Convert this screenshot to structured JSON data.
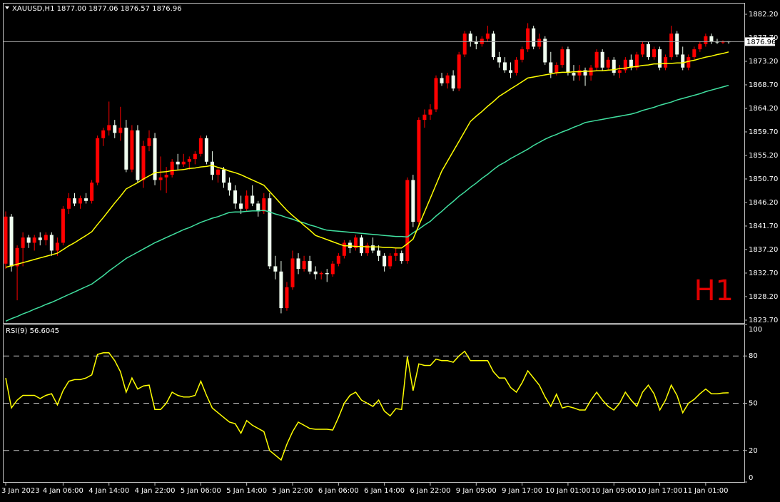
{
  "chart_data": {
    "type": "candlestick",
    "title": "XAUUSD,H1  1877.00 1877.06 1876.57 1876.96",
    "timeframe_label": "H1",
    "up_color": "#ff0000",
    "down_color": "#f0fff0",
    "ylim": [
      1823.15,
      1884.38
    ],
    "yticks": [
      {
        "value": 1882.2,
        "label": "1882.20"
      },
      {
        "value": 1877.7,
        "label": "1877.70"
      },
      {
        "value": 1873.2,
        "label": "1873.20"
      },
      {
        "value": 1868.7,
        "label": "1868.70"
      },
      {
        "value": 1864.2,
        "label": "1864.20"
      },
      {
        "value": 1859.7,
        "label": "1859.70"
      },
      {
        "value": 1855.2,
        "label": "1855.20"
      },
      {
        "value": 1850.7,
        "label": "1850.70"
      },
      {
        "value": 1846.2,
        "label": "1846.20"
      },
      {
        "value": 1841.7,
        "label": "1841.70"
      },
      {
        "value": 1837.2,
        "label": "1837.20"
      },
      {
        "value": 1832.7,
        "label": "1832.70"
      },
      {
        "value": 1828.2,
        "label": "1828.20"
      },
      {
        "value": 1823.7,
        "label": "1823.70"
      }
    ],
    "last_price": {
      "value": 1876.96,
      "label": "1876.96"
    },
    "categories": [
      "3 Jan 2023",
      null,
      null,
      null,
      null,
      null,
      null,
      null,
      null,
      null,
      "4 Jan 06:00",
      null,
      null,
      null,
      null,
      null,
      null,
      null,
      "4 Jan 14:00",
      null,
      null,
      null,
      null,
      null,
      null,
      null,
      "4 Jan 22:00",
      null,
      null,
      null,
      null,
      null,
      null,
      null,
      "5 Jan 06:00",
      null,
      null,
      null,
      null,
      null,
      null,
      null,
      "5 Jan 14:00",
      null,
      null,
      null,
      null,
      null,
      null,
      null,
      "5 Jan 22:00",
      null,
      null,
      null,
      null,
      null,
      null,
      null,
      "6 Jan 06:00",
      null,
      null,
      null,
      null,
      null,
      null,
      null,
      "6 Jan 14:00",
      null,
      null,
      null,
      null,
      null,
      null,
      null,
      "6 Jan 22:00",
      null,
      null,
      null,
      null,
      null,
      null,
      null,
      "9 Jan 09:00",
      null,
      null,
      null,
      null,
      null,
      null,
      null,
      "9 Jan 17:00",
      null,
      null,
      null,
      null,
      null,
      null,
      null,
      "10 Jan 01:00",
      null,
      null,
      null,
      null,
      null,
      null,
      null,
      "10 Jan 09:00",
      null,
      null,
      null,
      null,
      null,
      null,
      null,
      "10 Jan 17:00",
      null,
      null,
      null,
      null,
      null,
      null,
      null,
      "11 Jan 01:00",
      null,
      null,
      null,
      null
    ],
    "candles": [
      [
        1834.5,
        1844.5,
        1833.5,
        1843.5
      ],
      [
        1843.5,
        1844,
        1833,
        1834
      ],
      [
        1834,
        1838,
        1827.5,
        1837.5
      ],
      [
        1837.5,
        1840.5,
        1834,
        1839.5
      ],
      [
        1839.5,
        1840,
        1837.5,
        1838.5
      ],
      [
        1838.5,
        1840,
        1837,
        1839.5
      ],
      [
        1839.5,
        1840.5,
        1838,
        1839
      ],
      [
        1839,
        1840.5,
        1838,
        1840
      ],
      [
        1840,
        1840.5,
        1836,
        1837
      ],
      [
        1837,
        1839.5,
        1836,
        1838.5
      ],
      [
        1838.5,
        1845.5,
        1838,
        1845
      ],
      [
        1845,
        1848,
        1844,
        1847
      ],
      [
        1847,
        1848,
        1845.5,
        1846
      ],
      [
        1846,
        1847.5,
        1845,
        1847
      ],
      [
        1847,
        1848,
        1846,
        1846.5
      ],
      [
        1846.5,
        1850.5,
        1846,
        1850
      ],
      [
        1850,
        1859,
        1849.5,
        1858.5
      ],
      [
        1858.5,
        1860.5,
        1857,
        1860
      ],
      [
        1860,
        1865.5,
        1859,
        1861
      ],
      [
        1861,
        1862,
        1858.5,
        1859.5
      ],
      [
        1859.5,
        1864.5,
        1858,
        1860.5
      ],
      [
        1860.5,
        1862,
        1852,
        1852.5
      ],
      [
        1852.5,
        1861,
        1852,
        1860
      ],
      [
        1860,
        1861,
        1850,
        1850.5
      ],
      [
        1850.5,
        1858,
        1849,
        1857
      ],
      [
        1857,
        1860,
        1856,
        1858.5
      ],
      [
        1858.5,
        1859.5,
        1849.5,
        1850.5
      ],
      [
        1850.5,
        1855,
        1848.5,
        1851
      ],
      [
        1851,
        1853,
        1848,
        1851.5
      ],
      [
        1851.5,
        1854.5,
        1851,
        1854
      ],
      [
        1854,
        1855.5,
        1852.5,
        1853.5
      ],
      [
        1853.5,
        1855.5,
        1853,
        1854
      ],
      [
        1854,
        1855,
        1852.5,
        1854.5
      ],
      [
        1854.5,
        1856,
        1853.5,
        1855.5
      ],
      [
        1855.5,
        1859,
        1855,
        1858.5
      ],
      [
        1858.5,
        1859,
        1853.5,
        1854
      ],
      [
        1854,
        1856,
        1850.5,
        1851.5
      ],
      [
        1851.5,
        1853,
        1850,
        1852.5
      ],
      [
        1852.5,
        1853,
        1849,
        1850
      ],
      [
        1850,
        1851,
        1847.5,
        1848.5
      ],
      [
        1848.5,
        1849.5,
        1845,
        1846
      ],
      [
        1846,
        1847.5,
        1844,
        1845
      ],
      [
        1845,
        1848.5,
        1844.5,
        1847.5
      ],
      [
        1847.5,
        1849.5,
        1845.5,
        1846
      ],
      [
        1846,
        1846.5,
        1843.5,
        1844.5
      ],
      [
        1844.5,
        1848,
        1844,
        1847
      ],
      [
        1847,
        1848,
        1833.5,
        1834
      ],
      [
        1834,
        1836,
        1831.5,
        1833
      ],
      [
        1833,
        1835,
        1825,
        1826
      ],
      [
        1826,
        1831,
        1825.5,
        1830
      ],
      [
        1830,
        1837,
        1829.5,
        1835.5
      ],
      [
        1835.5,
        1836.5,
        1832.5,
        1833.5
      ],
      [
        1833.5,
        1836,
        1833,
        1835
      ],
      [
        1835,
        1836,
        1832.5,
        1833
      ],
      [
        1833,
        1834,
        1831.5,
        1832.5
      ],
      [
        1832.5,
        1833,
        1831.5,
        1832.7
      ],
      [
        1832.7,
        1833.5,
        1831,
        1832.5
      ],
      [
        1832.5,
        1835,
        1832,
        1834.5
      ],
      [
        1834.5,
        1836.5,
        1834,
        1836
      ],
      [
        1836,
        1839,
        1835.5,
        1838.5
      ],
      [
        1838.5,
        1839,
        1836.5,
        1837.5
      ],
      [
        1837.5,
        1840,
        1837,
        1839.5
      ],
      [
        1839.5,
        1840,
        1836,
        1836.5
      ],
      [
        1836.5,
        1838.5,
        1836,
        1838
      ],
      [
        1838,
        1839.5,
        1836.5,
        1837
      ],
      [
        1837,
        1838,
        1835,
        1836
      ],
      [
        1836,
        1836.5,
        1833,
        1834
      ],
      [
        1834,
        1836.5,
        1833.5,
        1836
      ],
      [
        1836,
        1837.5,
        1835,
        1836.5
      ],
      [
        1836.5,
        1837,
        1834.5,
        1835
      ],
      [
        1835,
        1851,
        1834.5,
        1850.5
      ],
      [
        1850.5,
        1851.5,
        1841.5,
        1842.5
      ],
      [
        1842.5,
        1862.5,
        1842,
        1862
      ],
      [
        1862,
        1864,
        1860.5,
        1863
      ],
      [
        1863,
        1865,
        1862,
        1864
      ],
      [
        1864,
        1870.5,
        1863.5,
        1870
      ],
      [
        1870,
        1871,
        1868.5,
        1869
      ],
      [
        1869,
        1871,
        1868,
        1870.5
      ],
      [
        1870.5,
        1871.5,
        1867.5,
        1868
      ],
      [
        1868,
        1875,
        1867.5,
        1874.5
      ],
      [
        1874.5,
        1879,
        1874,
        1878.5
      ],
      [
        1878.5,
        1879,
        1876,
        1877
      ],
      [
        1877,
        1878,
        1875.5,
        1876.5
      ],
      [
        1876.5,
        1878,
        1876,
        1877.5
      ],
      [
        1877.5,
        1880,
        1877,
        1878.5
      ],
      [
        1878.5,
        1879,
        1873.5,
        1874
      ],
      [
        1874,
        1875,
        1872,
        1873
      ],
      [
        1873,
        1874,
        1871,
        1871.5
      ],
      [
        1871.5,
        1873,
        1870,
        1871
      ],
      [
        1871,
        1874,
        1870.5,
        1873.5
      ],
      [
        1873.5,
        1876,
        1873,
        1875.5
      ],
      [
        1875.5,
        1880.5,
        1875,
        1879.5
      ],
      [
        1879.5,
        1880,
        1875.5,
        1876
      ],
      [
        1876,
        1878.5,
        1875.5,
        1877.5
      ],
      [
        1877.5,
        1878,
        1872.5,
        1873
      ],
      [
        1873,
        1875,
        1870,
        1871
      ],
      [
        1871,
        1873,
        1870.5,
        1872.5
      ],
      [
        1872.5,
        1876,
        1872,
        1875.5
      ],
      [
        1875.5,
        1876,
        1870.5,
        1871
      ],
      [
        1871,
        1872.5,
        1869.5,
        1870.5
      ],
      [
        1870.5,
        1872.5,
        1869.5,
        1871.5
      ],
      [
        1871.5,
        1872,
        1868.5,
        1870.5
      ],
      [
        1870.5,
        1872.5,
        1869.5,
        1872
      ],
      [
        1872,
        1875.5,
        1871.5,
        1875
      ],
      [
        1875,
        1875.5,
        1871.5,
        1872
      ],
      [
        1872,
        1874,
        1871.5,
        1873.5
      ],
      [
        1873.5,
        1874,
        1870.5,
        1871
      ],
      [
        1871,
        1872.5,
        1870,
        1871.5
      ],
      [
        1871.5,
        1874,
        1871,
        1873.5
      ],
      [
        1873.5,
        1874.5,
        1871.5,
        1872
      ],
      [
        1872,
        1875,
        1871.5,
        1874.5
      ],
      [
        1874.5,
        1877,
        1874,
        1876.5
      ],
      [
        1876.5,
        1877,
        1873.5,
        1874
      ],
      [
        1874,
        1876,
        1873.5,
        1875.5
      ],
      [
        1875.5,
        1876,
        1871.5,
        1872
      ],
      [
        1872,
        1874.5,
        1871.5,
        1874
      ],
      [
        1874,
        1880,
        1873.5,
        1878.5
      ],
      [
        1878.5,
        1879,
        1874,
        1874.5
      ],
      [
        1874.5,
        1876,
        1871.5,
        1872
      ],
      [
        1872,
        1874.5,
        1871.5,
        1874
      ],
      [
        1874,
        1876,
        1873.5,
        1875.5
      ],
      [
        1875.5,
        1877,
        1875,
        1876.5
      ],
      [
        1876.5,
        1878.5,
        1876,
        1878
      ],
      [
        1878,
        1878.5,
        1876.5,
        1877
      ],
      [
        1877,
        1877.5,
        1876.5,
        1876.8
      ],
      [
        1876.8,
        1877.2,
        1876.5,
        1877
      ],
      [
        1877,
        1877.06,
        1876.57,
        1876.96
      ]
    ],
    "ma_fast": {
      "color": "#ffff00",
      "values": [
        1833.8,
        1834.1,
        1834.4,
        1834.7,
        1835,
        1835.3,
        1835.6,
        1835.9,
        1836.2,
        1836.5,
        1837.2,
        1837.9,
        1838.5,
        1839.2,
        1839.9,
        1840.6,
        1842,
        1843.3,
        1844.7,
        1846.1,
        1847.4,
        1848.8,
        1849.4,
        1850,
        1850.7,
        1851.3,
        1851.9,
        1852,
        1852.1,
        1852.3,
        1852.4,
        1852.5,
        1852.7,
        1852.8,
        1853,
        1853.1,
        1853.3,
        1852.9,
        1852.6,
        1852.2,
        1851.9,
        1851.5,
        1851,
        1850.5,
        1850,
        1849.5,
        1848.3,
        1847.1,
        1845.9,
        1844.7,
        1843.7,
        1842.8,
        1841.8,
        1840.9,
        1839.9,
        1839.5,
        1839.1,
        1838.7,
        1838.3,
        1837.9,
        1837.9,
        1837.8,
        1837.8,
        1837.7,
        1837.7,
        1837.7,
        1837.6,
        1837.6,
        1837.5,
        1837.5,
        1838.3,
        1839.2,
        1841.8,
        1844.4,
        1847,
        1849.6,
        1852.2,
        1854.1,
        1856,
        1857.9,
        1859.8,
        1861.7,
        1862.7,
        1863.6,
        1864.6,
        1865.5,
        1866.5,
        1867.2,
        1867.9,
        1868.6,
        1869.3,
        1870,
        1870.2,
        1870.4,
        1870.6,
        1870.8,
        1871,
        1871.1,
        1871.1,
        1871.2,
        1871.2,
        1871.3,
        1871.3,
        1871.4,
        1871.4,
        1871.5,
        1871.6,
        1871.8,
        1871.9,
        1872.1,
        1872.2,
        1872.4,
        1872.5,
        1872.7,
        1872.7,
        1872.8,
        1872.8,
        1872.9,
        1872.9,
        1873.2,
        1873.4,
        1873.7,
        1874,
        1874.2,
        1874.5,
        1874.7,
        1875
      ]
    },
    "ma_slow": {
      "color": "#40e0a0",
      "values": [
        1823.5,
        1824,
        1824.4,
        1824.9,
        1825.3,
        1825.8,
        1826.2,
        1826.7,
        1827.1,
        1827.6,
        1828.1,
        1828.6,
        1829.1,
        1829.6,
        1830.1,
        1830.6,
        1831.4,
        1832.2,
        1833.1,
        1833.9,
        1834.7,
        1835.5,
        1836.1,
        1836.7,
        1837.3,
        1837.9,
        1838.5,
        1839,
        1839.5,
        1840,
        1840.5,
        1841,
        1841.4,
        1841.9,
        1842.4,
        1842.8,
        1843.2,
        1843.5,
        1843.9,
        1844.3,
        1844.4,
        1844.4,
        1844.5,
        1844.6,
        1844.6,
        1844.7,
        1844.4,
        1844,
        1843.7,
        1843.3,
        1843,
        1842.6,
        1842.3,
        1841.9,
        1841.6,
        1841.2,
        1840.9,
        1840.8,
        1840.7,
        1840.6,
        1840.5,
        1840.4,
        1840.3,
        1840.2,
        1840.1,
        1840,
        1839.9,
        1839.8,
        1839.7,
        1839.7,
        1839.6,
        1840.4,
        1841.1,
        1841.9,
        1842.6,
        1843.6,
        1844.5,
        1845.5,
        1846.4,
        1847.4,
        1848.2,
        1849.1,
        1849.9,
        1850.8,
        1851.6,
        1852.5,
        1853.3,
        1853.9,
        1854.6,
        1855.2,
        1855.8,
        1856.4,
        1857.1,
        1857.7,
        1858.3,
        1858.8,
        1859.2,
        1859.7,
        1860.1,
        1860.6,
        1861,
        1861.5,
        1861.7,
        1861.9,
        1862.1,
        1862.3,
        1862.5,
        1862.7,
        1862.9,
        1863.1,
        1863.4,
        1863.8,
        1864.1,
        1864.4,
        1864.8,
        1865.1,
        1865.4,
        1865.8,
        1866.1,
        1866.4,
        1866.7,
        1867,
        1867.4,
        1867.7,
        1868,
        1868.3,
        1868.6
      ]
    },
    "rsi": {
      "label": "RSI(9) 56.6045",
      "color": "#ffff00",
      "ylim": [
        0,
        100
      ],
      "yticks": [
        100,
        80,
        50,
        20,
        0
      ],
      "levels": [
        80,
        50,
        20
      ],
      "values": [
        66,
        47,
        52,
        55,
        55,
        55,
        53,
        55,
        56,
        49,
        58,
        64,
        65,
        65,
        66,
        68,
        81,
        82,
        82,
        77,
        70,
        57,
        66,
        59,
        61,
        61.5,
        46,
        46,
        50,
        57,
        55,
        54,
        54,
        55,
        64,
        55,
        47,
        44,
        41,
        38,
        37,
        31,
        39,
        36,
        34,
        32,
        20,
        17,
        14,
        24,
        32,
        38,
        36,
        34,
        33.5,
        33.5,
        33.5,
        33,
        41,
        50,
        55,
        57,
        52,
        50,
        48,
        52,
        45,
        42,
        46.6,
        46,
        79.6,
        58,
        75,
        74,
        74,
        78,
        77,
        77,
        76,
        80,
        83,
        77,
        77,
        77,
        77,
        70,
        66,
        66,
        60,
        57,
        63,
        70.6,
        66,
        61.5,
        54,
        48,
        55.7,
        47,
        48,
        47,
        45.7,
        45.7,
        52,
        57,
        52,
        48,
        45.7,
        50,
        57,
        52,
        48,
        57,
        61.5,
        56,
        45.7,
        52,
        61.5,
        55,
        44,
        50,
        52.5,
        56,
        59,
        56,
        56,
        56.5,
        56.6045
      ]
    }
  }
}
